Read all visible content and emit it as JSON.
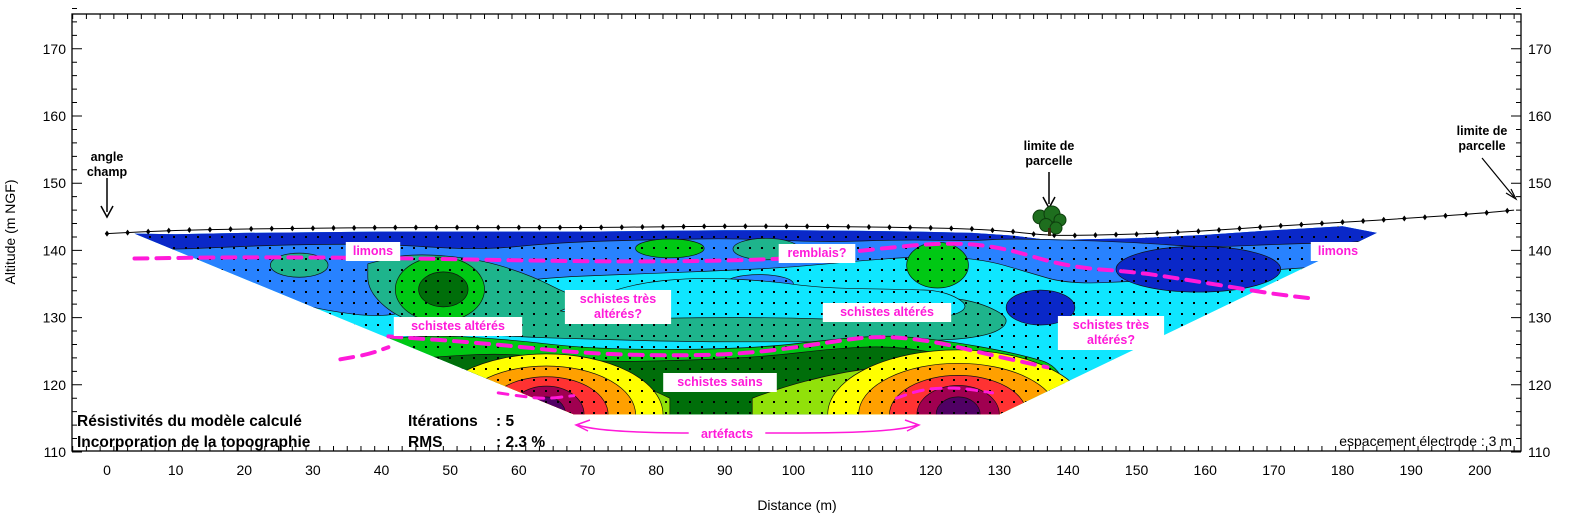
{
  "chart_data": {
    "type": "heatmap",
    "title": "",
    "xlabel": "Distance (m)",
    "ylabel": "Altitude (m NGF)",
    "xlim": [
      -5,
      205
    ],
    "ylim": [
      110,
      176
    ],
    "x_ticks": [
      0,
      10,
      20,
      30,
      40,
      50,
      60,
      70,
      80,
      90,
      100,
      110,
      120,
      130,
      140,
      150,
      160,
      170,
      180,
      190,
      200
    ],
    "y_ticks": [
      110,
      120,
      130,
      140,
      150,
      160,
      170
    ],
    "colors": {
      "very_low": "#0a28c8",
      "low": "#2882ff",
      "medium_low": "#0fe6ff",
      "medium": "#1eb48c",
      "medium_high": "#00c814",
      "moderately_high": "#006e0a",
      "high_green": "#91e10a",
      "yellow": "#ffff00",
      "orange": "#ffa000",
      "red": "#ff3232",
      "dark_red": "#a00050",
      "purple": "#500064",
      "interface": "#ff1ad9"
    },
    "topography": [
      [
        0,
        142.5
      ],
      [
        10,
        143
      ],
      [
        20,
        143.2
      ],
      [
        30,
        143.3
      ],
      [
        40,
        143.4
      ],
      [
        50,
        143.4
      ],
      [
        60,
        143.4
      ],
      [
        70,
        143.4
      ],
      [
        80,
        143.5
      ],
      [
        90,
        143.6
      ],
      [
        100,
        143.6
      ],
      [
        110,
        143.5
      ],
      [
        118,
        143.4
      ],
      [
        126,
        143.2
      ],
      [
        132,
        142.8
      ],
      [
        136,
        142.3
      ],
      [
        140,
        142.2
      ],
      [
        150,
        142.4
      ],
      [
        160,
        142.9
      ],
      [
        170,
        143.6
      ],
      [
        180,
        144.2
      ],
      [
        190,
        144.8
      ],
      [
        200,
        145.5
      ],
      [
        205,
        146
      ]
    ],
    "model_section": {
      "bottom_altitude": 115.6,
      "top_left": [
        4,
        142.5
      ],
      "top_right": [
        185,
        142.6
      ],
      "bottom_left": [
        68,
        115.6
      ],
      "bottom_right": [
        130,
        115.6
      ]
    },
    "interfaces": [
      {
        "name": "limons / schistes",
        "points": [
          [
            4,
            138.8
          ],
          [
            20,
            139
          ],
          [
            40,
            138.9
          ],
          [
            60,
            138.5
          ],
          [
            80,
            138.3
          ],
          [
            100,
            138.7
          ],
          [
            110,
            140
          ],
          [
            122,
            141.2
          ],
          [
            130,
            140.6
          ],
          [
            140,
            137.5
          ],
          [
            150,
            136.8
          ],
          [
            160,
            135.2
          ],
          [
            170,
            133.5
          ],
          [
            176,
            132.8
          ]
        ]
      },
      {
        "name": "schistes altérés / sains",
        "points": [
          [
            41,
            127.2
          ],
          [
            55,
            126.2
          ],
          [
            70,
            124.6
          ],
          [
            85,
            124.3
          ],
          [
            95,
            124.8
          ],
          [
            105,
            126.3
          ],
          [
            112,
            127.3
          ],
          [
            120,
            126.6
          ],
          [
            128,
            124.6
          ],
          [
            137,
            122.6
          ]
        ]
      }
    ],
    "annotations": {
      "angle_champ": "angle\nchamp",
      "limite_parcelle_1": "limite de\nparcelle",
      "limite_parcelle_2": "limite de\nparcelle",
      "limons_1": "limons",
      "limons_2": "limons",
      "remblais": "remblais?",
      "schistes_tres_alteres_1": "schistes très\naltérés?",
      "schistes_tres_alteres_2": "schistes très\naltérés?",
      "schistes_alteres_1": "schistes altérés",
      "schistes_alteres_2": "schistes altérés",
      "schistes_sains": "schistes sains",
      "artefacts": "artéfacts"
    },
    "info": {
      "model_line1": "Résistivités du modèle calculé",
      "model_line2": "Incorporation de la topographie",
      "iterations_label": "Itérations",
      "iterations_value": ": 5",
      "rms_label": "RMS",
      "rms_value": ": 2.3 %",
      "electrode_spacing": "espacement électrode : 3 m"
    }
  }
}
